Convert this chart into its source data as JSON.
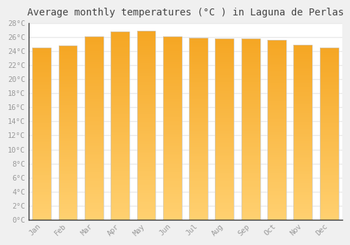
{
  "title": "Average monthly temperatures (°C ) in Laguna de Perlas",
  "months": [
    "Jan",
    "Feb",
    "Mar",
    "Apr",
    "May",
    "Jun",
    "Jul",
    "Aug",
    "Sep",
    "Oct",
    "Nov",
    "Dec"
  ],
  "temperatures": [
    24.5,
    24.8,
    26.1,
    26.8,
    26.9,
    26.1,
    25.9,
    25.8,
    25.8,
    25.6,
    24.9,
    24.5
  ],
  "bar_color_top": "#F5A623",
  "bar_color_bottom": "#FFD070",
  "ylim": [
    0,
    28
  ],
  "ytick_values": [
    0,
    2,
    4,
    6,
    8,
    10,
    12,
    14,
    16,
    18,
    20,
    22,
    24,
    26,
    28
  ],
  "plot_bg_color": "#ffffff",
  "fig_bg_color": "#f0f0f0",
  "grid_color": "#e8e8e8",
  "title_fontsize": 10,
  "tick_label_color": "#999999",
  "bar_edge_color": "#cccccc",
  "axis_color": "#333333"
}
